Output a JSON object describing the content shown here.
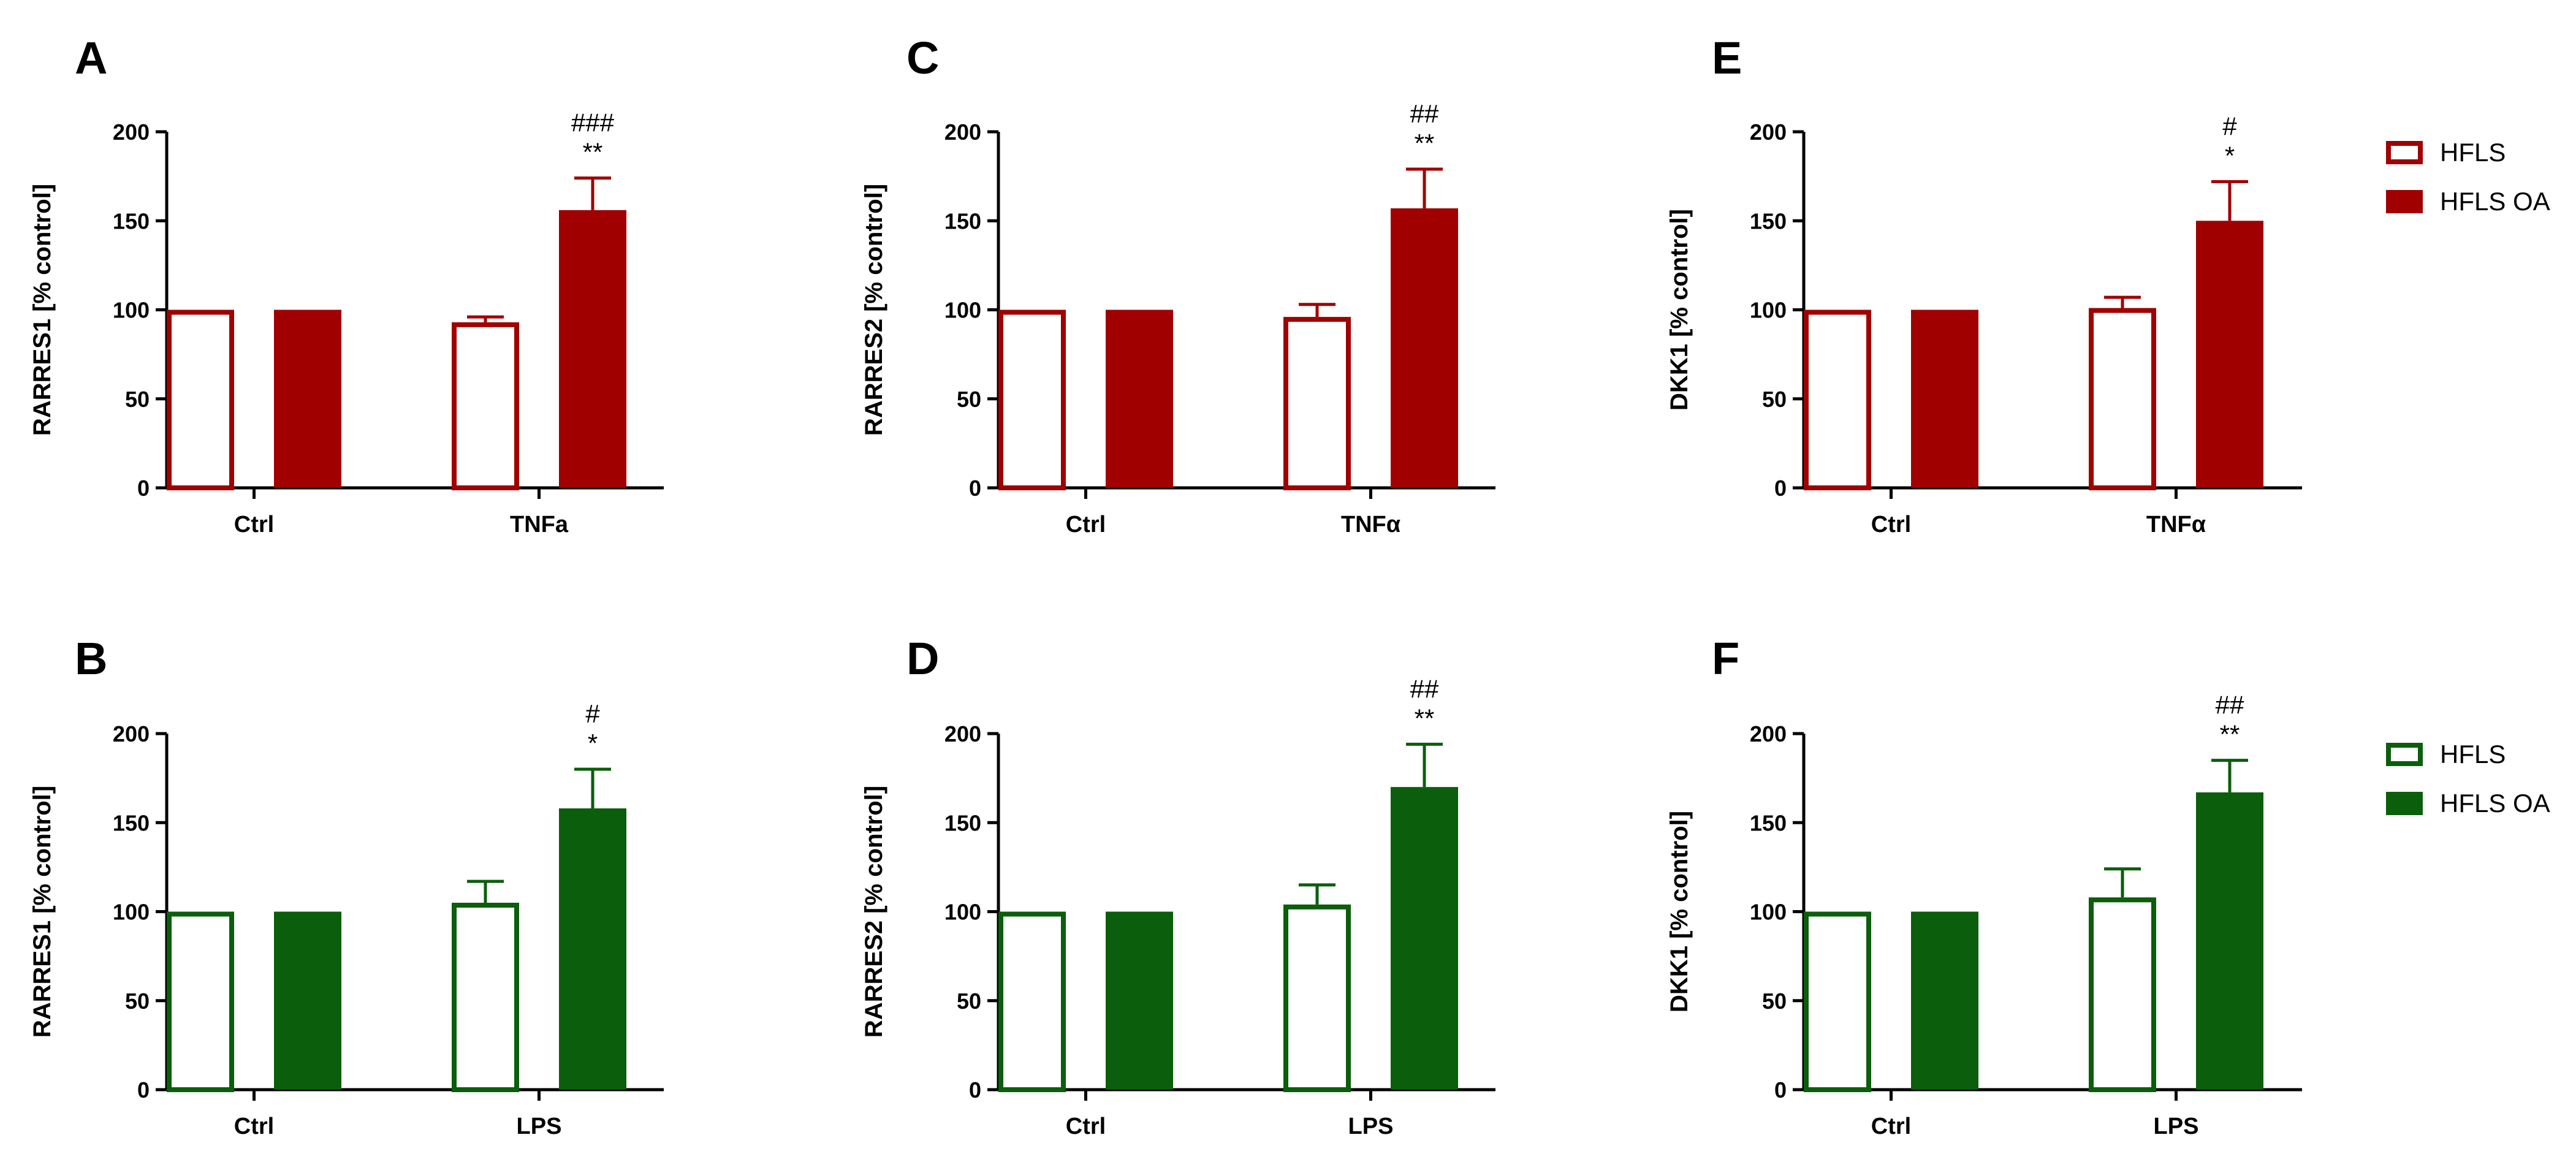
{
  "chart_data": [
    {
      "type": "bar",
      "panel": "A",
      "ylabel": "RARRES1 [% control]",
      "categories": [
        "Ctrl",
        "TNFa"
      ],
      "ylim": [
        0,
        200
      ],
      "yticks": [
        0,
        50,
        100,
        150,
        200
      ],
      "color": "#a00000",
      "series": [
        {
          "name": "HFLS",
          "style": "open",
          "values": [
            100,
            93
          ],
          "errors": [
            0,
            3
          ]
        },
        {
          "name": "HFLS OA",
          "style": "filled",
          "values": [
            100,
            156
          ],
          "errors": [
            0,
            18
          ]
        }
      ],
      "annotations": [
        {
          "category": 1,
          "series": 1,
          "lines": [
            "###",
            "**"
          ]
        }
      ]
    },
    {
      "type": "bar",
      "panel": "C",
      "ylabel": "RARRES2 [% control]",
      "categories": [
        "Ctrl",
        "TNFα"
      ],
      "ylim": [
        0,
        200
      ],
      "yticks": [
        0,
        50,
        100,
        150,
        200
      ],
      "color": "#a00000",
      "series": [
        {
          "name": "HFLS",
          "style": "open",
          "values": [
            100,
            96
          ],
          "errors": [
            0,
            7
          ]
        },
        {
          "name": "HFLS OA",
          "style": "filled",
          "values": [
            100,
            157
          ],
          "errors": [
            0,
            22
          ]
        }
      ],
      "annotations": [
        {
          "category": 1,
          "series": 1,
          "lines": [
            "##",
            "**"
          ]
        }
      ]
    },
    {
      "type": "bar",
      "panel": "E",
      "ylabel": "DKK1 [% control]",
      "categories": [
        "Ctrl",
        "TNFα"
      ],
      "ylim": [
        0,
        200
      ],
      "yticks": [
        0,
        50,
        100,
        150,
        200
      ],
      "color": "#a00000",
      "series": [
        {
          "name": "HFLS",
          "style": "open",
          "values": [
            100,
            101
          ],
          "errors": [
            0,
            6
          ]
        },
        {
          "name": "HFLS OA",
          "style": "filled",
          "values": [
            100,
            150
          ],
          "errors": [
            0,
            22
          ]
        }
      ],
      "annotations": [
        {
          "category": 1,
          "series": 1,
          "lines": [
            "#",
            "*"
          ]
        }
      ]
    },
    {
      "type": "bar",
      "panel": "B",
      "ylabel": "RARRES1 [% control]",
      "categories": [
        "Ctrl",
        "LPS"
      ],
      "ylim": [
        0,
        200
      ],
      "yticks": [
        0,
        50,
        100,
        150,
        200
      ],
      "color": "#0b5e0b",
      "series": [
        {
          "name": "HFLS",
          "style": "open",
          "values": [
            100,
            105
          ],
          "errors": [
            0,
            12
          ]
        },
        {
          "name": "HFLS OA",
          "style": "filled",
          "values": [
            100,
            158
          ],
          "errors": [
            0,
            22
          ]
        }
      ],
      "annotations": [
        {
          "category": 1,
          "series": 1,
          "lines": [
            "#",
            "*"
          ]
        }
      ]
    },
    {
      "type": "bar",
      "panel": "D",
      "ylabel": "RARRES2 [% control]",
      "categories": [
        "Ctrl",
        "LPS"
      ],
      "ylim": [
        0,
        200
      ],
      "yticks": [
        0,
        50,
        100,
        150,
        200
      ],
      "color": "#0b5e0b",
      "series": [
        {
          "name": "HFLS",
          "style": "open",
          "values": [
            100,
            104
          ],
          "errors": [
            0,
            11
          ]
        },
        {
          "name": "HFLS OA",
          "style": "filled",
          "values": [
            100,
            170
          ],
          "errors": [
            0,
            24
          ]
        }
      ],
      "annotations": [
        {
          "category": 1,
          "series": 1,
          "lines": [
            "##",
            "**"
          ]
        }
      ]
    },
    {
      "type": "bar",
      "panel": "F",
      "ylabel": "DKK1 [% control]",
      "categories": [
        "Ctrl",
        "LPS"
      ],
      "ylim": [
        0,
        200
      ],
      "yticks": [
        0,
        50,
        100,
        150,
        200
      ],
      "color": "#0b5e0b",
      "series": [
        {
          "name": "HFLS",
          "style": "open",
          "values": [
            100,
            108
          ],
          "errors": [
            0,
            16
          ]
        },
        {
          "name": "HFLS OA",
          "style": "filled",
          "values": [
            100,
            167
          ],
          "errors": [
            0,
            18
          ]
        }
      ],
      "annotations": [
        {
          "category": 1,
          "series": 1,
          "lines": [
            "##",
            "**"
          ]
        }
      ]
    }
  ],
  "legends": [
    {
      "name": "legend-red",
      "color": "#a00000",
      "entries": [
        {
          "label": "HFLS",
          "style": "open"
        },
        {
          "label": "HFLS OA",
          "style": "filled"
        }
      ]
    },
    {
      "name": "legend-green",
      "color": "#0b5e0b",
      "entries": [
        {
          "label": "HFLS",
          "style": "open"
        },
        {
          "label": "HFLS OA",
          "style": "filled"
        }
      ]
    }
  ]
}
